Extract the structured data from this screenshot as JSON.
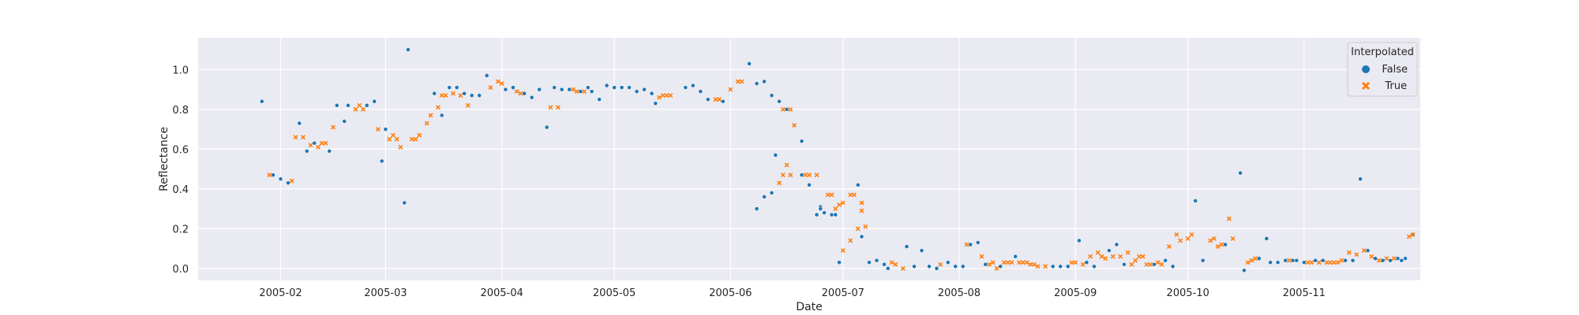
{
  "chart_data": {
    "type": "scatter",
    "title": "",
    "xlabel": "Date",
    "ylabel": "Reflectance",
    "x_ticks": [
      "2005-02",
      "2005-03",
      "2005-04",
      "2005-05",
      "2005-06",
      "2005-07",
      "2005-08",
      "2005-09",
      "2005-10",
      "2005-11"
    ],
    "y_ticks": [
      "0.0",
      "0.2",
      "0.4",
      "0.6",
      "0.8",
      "1.0"
    ],
    "xlim": [
      "2005-01-10",
      "2005-12-02"
    ],
    "ylim": [
      -0.06,
      1.16
    ],
    "grid": true,
    "legend": {
      "title": "Interpolated",
      "placement": "top-right"
    },
    "series": [
      {
        "name": "False",
        "marker": "circle",
        "color": "#1f77b4",
        "points": [
          [
            "2005-01-27",
            0.84
          ],
          [
            "2005-01-30",
            0.47
          ],
          [
            "2005-02-01",
            0.45
          ],
          [
            "2005-02-03",
            0.43
          ],
          [
            "2005-02-06",
            0.73
          ],
          [
            "2005-02-08",
            0.59
          ],
          [
            "2005-02-10",
            0.63
          ],
          [
            "2005-02-14",
            0.59
          ],
          [
            "2005-02-16",
            0.82
          ],
          [
            "2005-02-18",
            0.74
          ],
          [
            "2005-02-19",
            0.82
          ],
          [
            "2005-02-24",
            0.82
          ],
          [
            "2005-02-26",
            0.84
          ],
          [
            "2005-02-28",
            0.54
          ],
          [
            "2005-03-01",
            0.7
          ],
          [
            "2005-03-06",
            0.33
          ],
          [
            "2005-03-07",
            1.1
          ],
          [
            "2005-03-14",
            0.88
          ],
          [
            "2005-03-16",
            0.77
          ],
          [
            "2005-03-18",
            0.91
          ],
          [
            "2005-03-20",
            0.91
          ],
          [
            "2005-03-22",
            0.88
          ],
          [
            "2005-03-24",
            0.87
          ],
          [
            "2005-03-26",
            0.87
          ],
          [
            "2005-03-28",
            0.97
          ],
          [
            "2005-04-02",
            0.9
          ],
          [
            "2005-04-04",
            0.91
          ],
          [
            "2005-04-07",
            0.88
          ],
          [
            "2005-04-09",
            0.86
          ],
          [
            "2005-04-11",
            0.9
          ],
          [
            "2005-04-13",
            0.71
          ],
          [
            "2005-04-15",
            0.91
          ],
          [
            "2005-04-17",
            0.9
          ],
          [
            "2005-04-19",
            0.9
          ],
          [
            "2005-04-22",
            0.89
          ],
          [
            "2005-04-24",
            0.91
          ],
          [
            "2005-04-25",
            0.89
          ],
          [
            "2005-04-27",
            0.85
          ],
          [
            "2005-04-29",
            0.92
          ],
          [
            "2005-05-01",
            0.91
          ],
          [
            "2005-05-03",
            0.91
          ],
          [
            "2005-05-05",
            0.91
          ],
          [
            "2005-05-07",
            0.89
          ],
          [
            "2005-05-09",
            0.9
          ],
          [
            "2005-05-11",
            0.88
          ],
          [
            "2005-05-12",
            0.83
          ],
          [
            "2005-05-20",
            0.91
          ],
          [
            "2005-05-22",
            0.92
          ],
          [
            "2005-05-24",
            0.89
          ],
          [
            "2005-05-26",
            0.85
          ],
          [
            "2005-05-30",
            0.84
          ],
          [
            "2005-06-06",
            1.03
          ],
          [
            "2005-06-08",
            0.93
          ],
          [
            "2005-06-10",
            0.94
          ],
          [
            "2005-06-12",
            0.87
          ],
          [
            "2005-06-14",
            0.84
          ],
          [
            "2005-06-16",
            0.8
          ],
          [
            "2005-06-20",
            0.64
          ],
          [
            "2005-06-25",
            0.31
          ],
          [
            "2005-06-08",
            0.3
          ],
          [
            "2005-06-10",
            0.36
          ],
          [
            "2005-06-12",
            0.38
          ],
          [
            "2005-06-13",
            0.57
          ],
          [
            "2005-06-20",
            0.47
          ],
          [
            "2005-06-22",
            0.42
          ],
          [
            "2005-06-24",
            0.27
          ],
          [
            "2005-06-25",
            0.3
          ],
          [
            "2005-06-26",
            0.28
          ],
          [
            "2005-06-28",
            0.27
          ],
          [
            "2005-06-29",
            0.27
          ],
          [
            "2005-06-30",
            0.03
          ],
          [
            "2005-07-05",
            0.42
          ],
          [
            "2005-07-06",
            0.16
          ],
          [
            "2005-07-08",
            0.03
          ],
          [
            "2005-07-10",
            0.04
          ],
          [
            "2005-07-12",
            0.02
          ],
          [
            "2005-07-13",
            0.0
          ],
          [
            "2005-07-18",
            0.11
          ],
          [
            "2005-07-20",
            0.01
          ],
          [
            "2005-07-22",
            0.09
          ],
          [
            "2005-07-24",
            0.01
          ],
          [
            "2005-07-26",
            0.0
          ],
          [
            "2005-07-29",
            0.03
          ],
          [
            "2005-07-31",
            0.01
          ],
          [
            "2005-08-02",
            0.01
          ],
          [
            "2005-08-04",
            0.12
          ],
          [
            "2005-08-06",
            0.13
          ],
          [
            "2005-08-08",
            0.02
          ],
          [
            "2005-08-12",
            0.01
          ],
          [
            "2005-08-16",
            0.06
          ],
          [
            "2005-08-26",
            0.01
          ],
          [
            "2005-08-28",
            0.01
          ],
          [
            "2005-08-30",
            0.01
          ],
          [
            "2005-09-02",
            0.14
          ],
          [
            "2005-09-04",
            0.03
          ],
          [
            "2005-09-06",
            0.01
          ],
          [
            "2005-09-10",
            0.09
          ],
          [
            "2005-09-12",
            0.12
          ],
          [
            "2005-09-14",
            0.02
          ],
          [
            "2005-09-22",
            0.02
          ],
          [
            "2005-09-25",
            0.04
          ],
          [
            "2005-09-27",
            0.01
          ],
          [
            "2005-10-03",
            0.34
          ],
          [
            "2005-10-05",
            0.04
          ],
          [
            "2005-10-11",
            0.12
          ],
          [
            "2005-10-15",
            0.48
          ],
          [
            "2005-10-16",
            -0.01
          ],
          [
            "2005-10-20",
            0.05
          ],
          [
            "2005-10-22",
            0.15
          ],
          [
            "2005-10-23",
            0.03
          ],
          [
            "2005-10-25",
            0.03
          ],
          [
            "2005-10-27",
            0.04
          ],
          [
            "2005-10-29",
            0.04
          ],
          [
            "2005-10-30",
            0.04
          ],
          [
            "2005-11-01",
            0.03
          ],
          [
            "2005-11-04",
            0.04
          ],
          [
            "2005-11-06",
            0.04
          ],
          [
            "2005-11-12",
            0.04
          ],
          [
            "2005-11-14",
            0.04
          ],
          [
            "2005-11-16",
            0.45
          ],
          [
            "2005-11-18",
            0.09
          ],
          [
            "2005-11-20",
            0.05
          ],
          [
            "2005-11-22",
            0.04
          ],
          [
            "2005-11-24",
            0.04
          ],
          [
            "2005-11-26",
            0.05
          ],
          [
            "2005-11-27",
            0.04
          ],
          [
            "2005-11-28",
            0.05
          ],
          [
            "2005-11-30",
            0.17
          ],
          [
            "2005-11-30",
            0.17
          ]
        ]
      },
      {
        "name": "True",
        "marker": "x",
        "color": "#ff7f0e",
        "points": [
          [
            "2005-01-29",
            0.47
          ],
          [
            "2005-02-04",
            0.44
          ],
          [
            "2005-02-05",
            0.66
          ],
          [
            "2005-02-07",
            0.66
          ],
          [
            "2005-02-09",
            0.62
          ],
          [
            "2005-02-11",
            0.61
          ],
          [
            "2005-02-12",
            0.63
          ],
          [
            "2005-02-13",
            0.63
          ],
          [
            "2005-02-15",
            0.71
          ],
          [
            "2005-02-21",
            0.8
          ],
          [
            "2005-02-22",
            0.82
          ],
          [
            "2005-02-23",
            0.8
          ],
          [
            "2005-02-27",
            0.7
          ],
          [
            "2005-03-02",
            0.65
          ],
          [
            "2005-03-03",
            0.67
          ],
          [
            "2005-03-04",
            0.65
          ],
          [
            "2005-03-05",
            0.61
          ],
          [
            "2005-03-08",
            0.65
          ],
          [
            "2005-03-09",
            0.65
          ],
          [
            "2005-03-10",
            0.67
          ],
          [
            "2005-03-12",
            0.73
          ],
          [
            "2005-03-13",
            0.77
          ],
          [
            "2005-03-15",
            0.81
          ],
          [
            "2005-03-16",
            0.87
          ],
          [
            "2005-03-17",
            0.87
          ],
          [
            "2005-03-19",
            0.88
          ],
          [
            "2005-03-21",
            0.87
          ],
          [
            "2005-03-23",
            0.82
          ],
          [
            "2005-03-29",
            0.91
          ],
          [
            "2005-03-31",
            0.94
          ],
          [
            "2005-04-01",
            0.93
          ],
          [
            "2005-04-05",
            0.89
          ],
          [
            "2005-04-06",
            0.88
          ],
          [
            "2005-04-14",
            0.81
          ],
          [
            "2005-04-16",
            0.81
          ],
          [
            "2005-04-20",
            0.9
          ],
          [
            "2005-04-21",
            0.89
          ],
          [
            "2005-04-23",
            0.89
          ],
          [
            "2005-05-13",
            0.86
          ],
          [
            "2005-05-14",
            0.87
          ],
          [
            "2005-05-15",
            0.87
          ],
          [
            "2005-05-16",
            0.87
          ],
          [
            "2005-05-28",
            0.85
          ],
          [
            "2005-05-29",
            0.85
          ],
          [
            "2005-06-01",
            0.9
          ],
          [
            "2005-06-03",
            0.94
          ],
          [
            "2005-06-04",
            0.94
          ],
          [
            "2005-06-15",
            0.8
          ],
          [
            "2005-06-17",
            0.8
          ],
          [
            "2005-06-18",
            0.72
          ],
          [
            "2005-06-21",
            0.47
          ],
          [
            "2005-06-22",
            0.47
          ],
          [
            "2005-06-24",
            0.47
          ],
          [
            "2005-06-27",
            0.37
          ],
          [
            "2005-06-28",
            0.37
          ],
          [
            "2005-06-29",
            0.3
          ],
          [
            "2005-06-30",
            0.32
          ],
          [
            "2005-07-01",
            0.33
          ],
          [
            "2005-07-03",
            0.37
          ],
          [
            "2005-07-04",
            0.37
          ],
          [
            "2005-07-06",
            0.33
          ],
          [
            "2005-06-14",
            0.43
          ],
          [
            "2005-06-15",
            0.47
          ],
          [
            "2005-06-16",
            0.52
          ],
          [
            "2005-06-17",
            0.47
          ],
          [
            "2005-07-01",
            0.09
          ],
          [
            "2005-07-03",
            0.14
          ],
          [
            "2005-07-05",
            0.2
          ],
          [
            "2005-07-06",
            0.29
          ],
          [
            "2005-07-07",
            0.21
          ],
          [
            "2005-07-14",
            0.03
          ],
          [
            "2005-07-15",
            0.02
          ],
          [
            "2005-07-17",
            0.0
          ],
          [
            "2005-07-27",
            0.02
          ],
          [
            "2005-08-03",
            0.12
          ],
          [
            "2005-08-07",
            0.06
          ],
          [
            "2005-08-09",
            0.02
          ],
          [
            "2005-08-10",
            0.03
          ],
          [
            "2005-08-11",
            0.0
          ],
          [
            "2005-08-13",
            0.03
          ],
          [
            "2005-08-14",
            0.03
          ],
          [
            "2005-08-15",
            0.03
          ],
          [
            "2005-08-17",
            0.03
          ],
          [
            "2005-08-18",
            0.03
          ],
          [
            "2005-08-19",
            0.03
          ],
          [
            "2005-08-20",
            0.02
          ],
          [
            "2005-08-21",
            0.02
          ],
          [
            "2005-08-22",
            0.01
          ],
          [
            "2005-08-24",
            0.01
          ],
          [
            "2005-08-31",
            0.03
          ],
          [
            "2005-09-01",
            0.03
          ],
          [
            "2005-09-03",
            0.02
          ],
          [
            "2005-09-05",
            0.06
          ],
          [
            "2005-09-07",
            0.08
          ],
          [
            "2005-09-08",
            0.06
          ],
          [
            "2005-09-09",
            0.05
          ],
          [
            "2005-09-11",
            0.06
          ],
          [
            "2005-09-13",
            0.06
          ],
          [
            "2005-09-15",
            0.08
          ],
          [
            "2005-09-16",
            0.02
          ],
          [
            "2005-09-17",
            0.04
          ],
          [
            "2005-09-18",
            0.06
          ],
          [
            "2005-09-19",
            0.06
          ],
          [
            "2005-09-20",
            0.02
          ],
          [
            "2005-09-21",
            0.02
          ],
          [
            "2005-09-23",
            0.03
          ],
          [
            "2005-09-24",
            0.02
          ],
          [
            "2005-09-26",
            0.11
          ],
          [
            "2005-09-28",
            0.17
          ],
          [
            "2005-09-29",
            0.14
          ],
          [
            "2005-10-01",
            0.15
          ],
          [
            "2005-10-02",
            0.17
          ],
          [
            "2005-10-07",
            0.14
          ],
          [
            "2005-10-08",
            0.15
          ],
          [
            "2005-10-09",
            0.11
          ],
          [
            "2005-10-10",
            0.12
          ],
          [
            "2005-10-12",
            0.25
          ],
          [
            "2005-10-13",
            0.15
          ],
          [
            "2005-10-17",
            0.03
          ],
          [
            "2005-10-18",
            0.04
          ],
          [
            "2005-10-19",
            0.05
          ],
          [
            "2005-10-28",
            0.04
          ],
          [
            "2005-11-02",
            0.03
          ],
          [
            "2005-11-03",
            0.03
          ],
          [
            "2005-11-05",
            0.03
          ],
          [
            "2005-11-07",
            0.03
          ],
          [
            "2005-11-08",
            0.03
          ],
          [
            "2005-11-09",
            0.03
          ],
          [
            "2005-11-10",
            0.03
          ],
          [
            "2005-11-11",
            0.04
          ],
          [
            "2005-11-13",
            0.08
          ],
          [
            "2005-11-15",
            0.07
          ],
          [
            "2005-11-17",
            0.09
          ],
          [
            "2005-11-19",
            0.06
          ],
          [
            "2005-11-21",
            0.04
          ],
          [
            "2005-11-23",
            0.05
          ],
          [
            "2005-11-25",
            0.05
          ],
          [
            "2005-11-29",
            0.16
          ],
          [
            "2005-11-30",
            0.17
          ]
        ]
      }
    ]
  }
}
